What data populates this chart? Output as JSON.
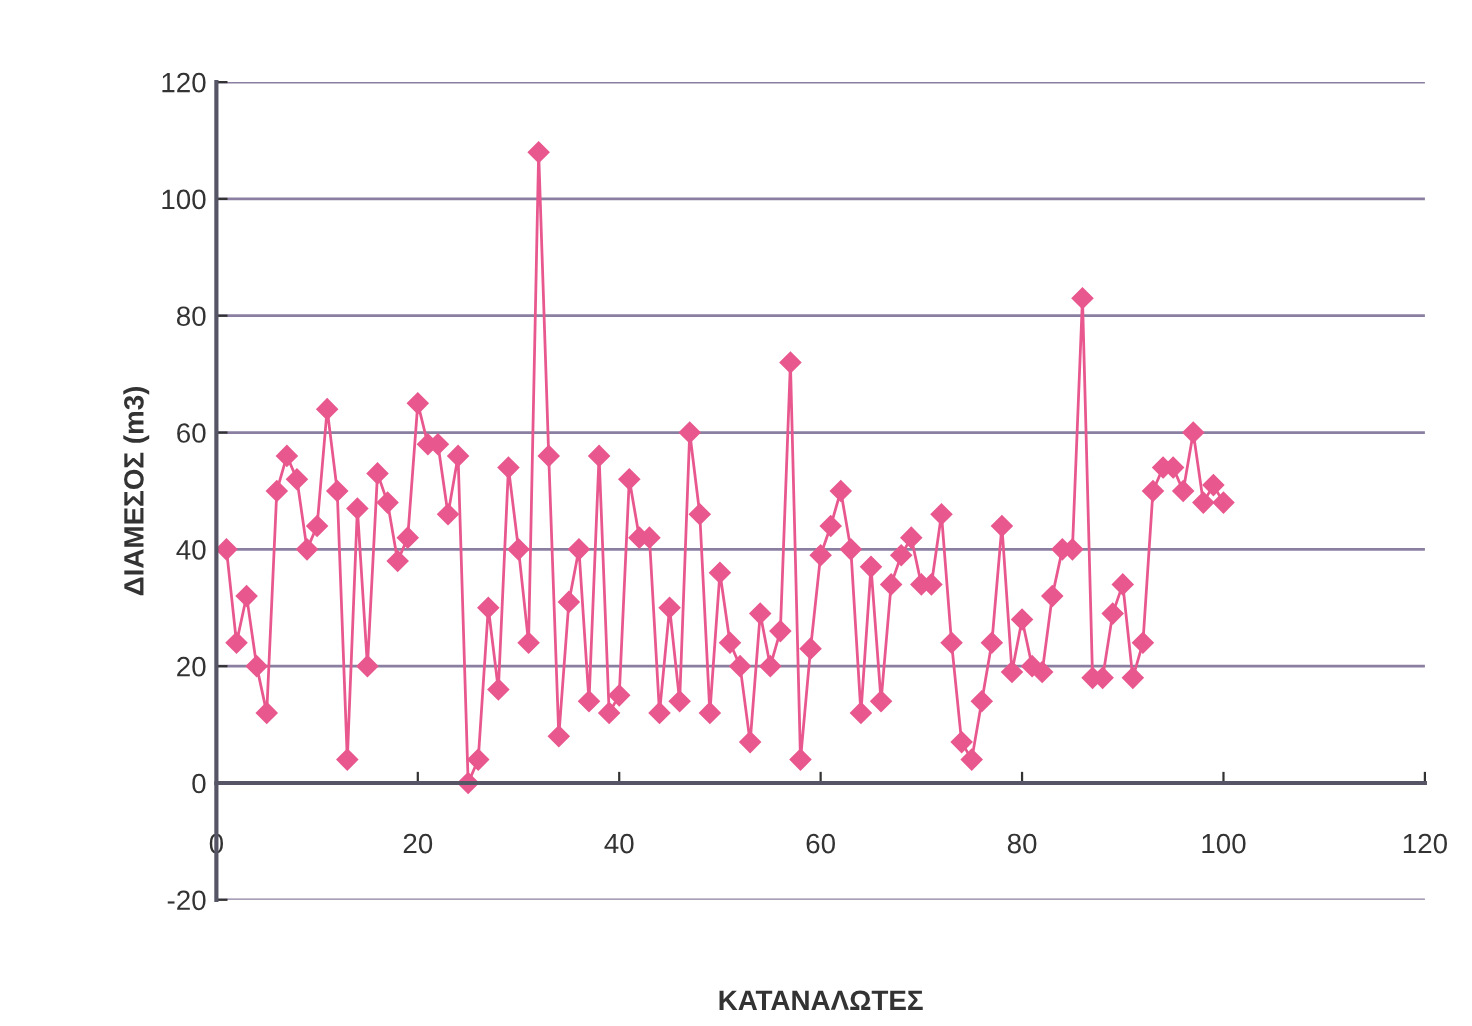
{
  "chart_data": {
    "type": "line",
    "xlabel": "ΚΑΤΑΝΑΛΩΤΕΣ",
    "ylabel": "ΔΙΑΜΕΣΟΣ (m3)",
    "x": [
      1,
      2,
      3,
      4,
      5,
      6,
      7,
      8,
      9,
      10,
      11,
      12,
      13,
      14,
      15,
      16,
      17,
      18,
      19,
      20,
      21,
      22,
      23,
      24,
      25,
      26,
      27,
      28,
      29,
      30,
      31,
      32,
      33,
      34,
      35,
      36,
      37,
      38,
      39,
      40,
      41,
      42,
      43,
      44,
      45,
      46,
      47,
      48,
      49,
      50,
      51,
      52,
      53,
      54,
      55,
      56,
      57,
      58,
      59,
      60,
      61,
      62,
      63,
      64,
      65,
      66,
      67,
      68,
      69,
      70,
      71,
      72,
      73,
      74,
      75,
      76,
      77,
      78,
      79,
      80,
      81,
      82,
      83,
      84,
      85,
      86,
      87,
      88,
      89,
      90,
      91,
      92,
      93,
      94,
      95,
      96,
      97,
      98,
      99,
      100
    ],
    "series": [
      {
        "color": "#e8588e",
        "values": [
          40,
          24,
          32,
          20,
          12,
          50,
          56,
          52,
          40,
          44,
          64,
          50,
          4,
          47,
          20,
          53,
          48,
          38,
          42,
          65,
          58,
          58,
          46,
          56,
          0,
          4,
          30,
          16,
          54,
          40,
          24,
          108,
          56,
          8,
          31,
          40,
          14,
          56,
          12,
          15,
          52,
          42,
          42,
          12,
          30,
          14,
          60,
          46,
          12,
          36,
          24,
          20,
          7,
          29,
          20,
          26,
          72,
          4,
          23,
          39,
          44,
          50,
          40,
          12,
          37,
          14,
          34,
          39,
          42,
          34,
          34,
          46,
          24,
          7,
          4,
          14,
          24,
          44,
          19,
          28,
          20,
          19,
          32,
          40,
          40,
          83,
          18,
          18,
          29,
          34,
          18,
          24,
          50,
          54,
          54,
          50,
          60,
          48,
          51,
          48
        ]
      }
    ],
    "xlim": [
      0,
      120
    ],
    "xticks": [
      0,
      20,
      40,
      60,
      80,
      100,
      120
    ],
    "ylim": [
      -20,
      120
    ],
    "yticks": [
      -20,
      0,
      20,
      40,
      60,
      80,
      100,
      120
    ],
    "grid": "y",
    "marker": "diamond",
    "line_style": "solid"
  }
}
